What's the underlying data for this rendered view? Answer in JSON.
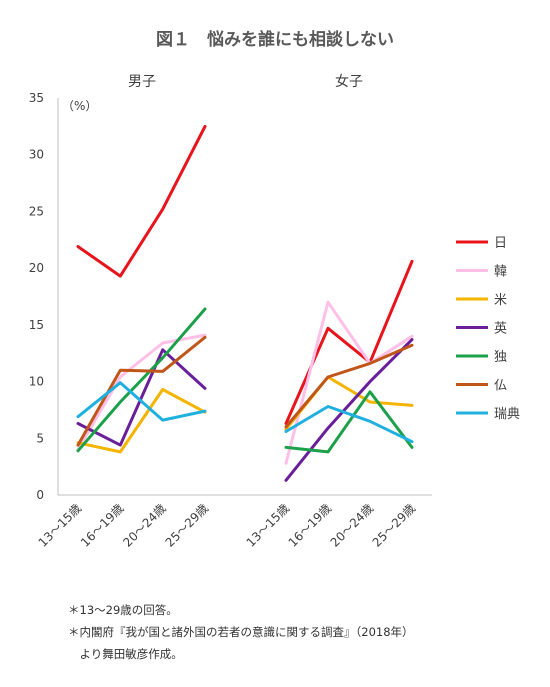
{
  "chart_data": {
    "type": "line",
    "title": "図１　悩みを誰にも相談しない",
    "ylabel": "（%）",
    "ylim": [
      0,
      35
    ],
    "yticks": [
      "0",
      "5",
      "10",
      "15",
      "20",
      "25",
      "30",
      "35"
    ],
    "categories": [
      "13～15歳",
      "16～19歳",
      "20～24歳",
      "25～29歳"
    ],
    "grid": false,
    "legend_position": "right",
    "panels": [
      {
        "name": "男子",
        "series": [
          {
            "name": "日",
            "color": "#e8141c",
            "values": [
              21.9,
              19.3,
              25.2,
              32.5
            ]
          },
          {
            "name": "韓",
            "color": "#ffc0e8",
            "values": [
              4.0,
              10.4,
              13.4,
              14.1
            ]
          },
          {
            "name": "米",
            "color": "#f4b400",
            "values": [
              4.6,
              3.8,
              9.3,
              7.3
            ]
          },
          {
            "name": "英",
            "color": "#6a1f9a",
            "values": [
              6.3,
              4.4,
              12.8,
              9.4
            ]
          },
          {
            "name": "独",
            "color": "#1ca04a",
            "values": [
              3.9,
              8.2,
              12.1,
              16.4
            ]
          },
          {
            "name": "仏",
            "color": "#c0561a",
            "values": [
              4.4,
              11.0,
              10.9,
              13.9
            ]
          },
          {
            "name": "瑞典",
            "color": "#20b0e0",
            "values": [
              6.9,
              9.9,
              6.6,
              7.4
            ]
          }
        ]
      },
      {
        "name": "女子",
        "series": [
          {
            "name": "日",
            "color": "#e8141c",
            "values": [
              6.3,
              14.7,
              11.7,
              20.6
            ]
          },
          {
            "name": "韓",
            "color": "#ffc0e8",
            "values": [
              2.8,
              17.0,
              11.6,
              14.0
            ]
          },
          {
            "name": "米",
            "color": "#f4b400",
            "values": [
              5.8,
              10.4,
              8.2,
              7.9
            ]
          },
          {
            "name": "英",
            "color": "#6a1f9a",
            "values": [
              1.3,
              5.9,
              10.0,
              13.7
            ]
          },
          {
            "name": "独",
            "color": "#1ca04a",
            "values": [
              4.2,
              3.8,
              9.1,
              4.2
            ]
          },
          {
            "name": "仏",
            "color": "#c0561a",
            "values": [
              6.0,
              10.4,
              11.6,
              13.2
            ]
          },
          {
            "name": "瑞典",
            "color": "#20b0e0",
            "values": [
              5.6,
              7.8,
              6.5,
              4.7
            ]
          }
        ]
      }
    ]
  },
  "notes": [
    "＊13～29歳の回答。",
    "＊内閣府『我が国と諸外国の若者の意識に関する調査』（2018年）",
    "　より舞田敏彦作成。"
  ]
}
